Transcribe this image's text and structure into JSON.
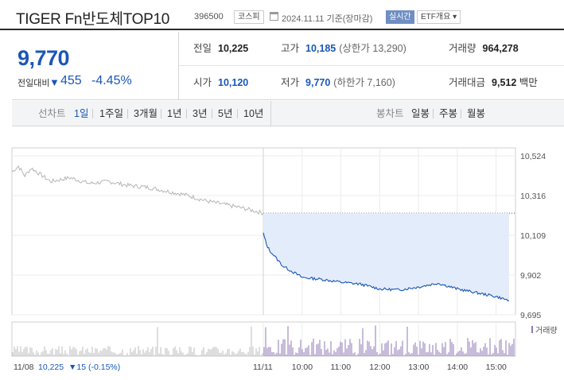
{
  "header": {
    "name": "TIGER Fn반도체TOP10",
    "code": "396500",
    "market": "코스피",
    "date": "2024.11.11 기준(장마감)",
    "live": "실시간",
    "etf": "ETF개요 ▾"
  },
  "price": {
    "current": "9,770",
    "change_label": "전일대비",
    "change_arrow": "▼",
    "change": "455",
    "change_pct": "-4.45%"
  },
  "stats": {
    "prev_label": "전일",
    "prev": "10,225",
    "high_label": "고가",
    "high": "10,185",
    "upper_limit": "(상한가 13,290)",
    "volume_label": "거래량",
    "volume": "964,278",
    "open_label": "시가",
    "open": "10,120",
    "low_label": "저가",
    "low": "9,770",
    "lower_limit": "(하한가 7,160)",
    "amount_label": "거래대금",
    "amount": "9,512",
    "amount_unit": "백만"
  },
  "tabs": {
    "line_label": "선차트",
    "periods": [
      "1일",
      "1주일",
      "3개월",
      "1년",
      "3년",
      "5년",
      "10년"
    ],
    "selected": "1일",
    "candle_label": "봉차트",
    "candles": [
      "일봉",
      "주봉",
      "월봉"
    ]
  },
  "chart_data": {
    "type": "line",
    "y_ticks": [
      "10,524",
      "10,316",
      "10,109",
      "9,902",
      "9,695"
    ],
    "ylim": [
      9695,
      10524
    ],
    "x_ticks": [
      "11/08",
      "11/11",
      "10:00",
      "11:00",
      "12:00",
      "13:00",
      "14:00",
      "15:00"
    ],
    "prev_close": 10225,
    "volume_label": "거래량",
    "footer": {
      "date": "11/08",
      "close": "10,225",
      "change": "▼15 (-0.15%)"
    },
    "series": [
      {
        "x": [
          "11/08 09:00",
          "11/08 09:10",
          "11/08 09:20",
          "11/08 09:30",
          "11/08 10:00",
          "11/08 10:30",
          "11/08 11:00",
          "11/08 11:30",
          "11/08 12:00",
          "11/08 12:30",
          "11/08 13:00",
          "11/08 13:30",
          "11/08 14:00",
          "11/08 14:30",
          "11/08 15:00",
          "11/08 15:30"
        ],
        "y": [
          10440,
          10470,
          10420,
          10460,
          10390,
          10410,
          10380,
          10390,
          10370,
          10360,
          10340,
          10320,
          10290,
          10270,
          10250,
          10225
        ]
      },
      {
        "x": [
          "11/11 09:00",
          "11/11 09:05",
          "11/11 09:10",
          "11/11 09:20",
          "11/11 09:30",
          "11/11 09:45",
          "11/11 10:00",
          "11/11 10:30",
          "11/11 11:00",
          "11/11 11:30",
          "11/11 12:00",
          "11/11 12:30",
          "11/11 13:00",
          "11/11 13:30",
          "11/11 14:00",
          "11/11 14:30",
          "11/11 15:00",
          "11/11 15:20"
        ],
        "y": [
          10120,
          10060,
          10030,
          9990,
          9950,
          9920,
          9890,
          9880,
          9865,
          9855,
          9830,
          9825,
          9840,
          9860,
          9830,
          9810,
          9790,
          9770
        ]
      }
    ]
  },
  "colors": {
    "accent": "#1a57b5",
    "prev_day": "#b5b5b5",
    "fill": "#e3ecfa",
    "volume": "#8f78b4"
  }
}
